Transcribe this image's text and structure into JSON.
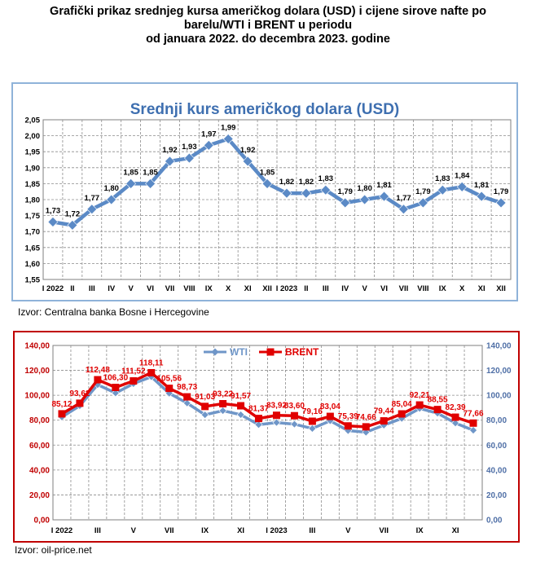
{
  "title": {
    "line1": "Grafički prikaz srednjeg kursa američkog dolara (USD) i cijene sirove nafte po",
    "line2": "barelu/WTI i BRENT u periodu",
    "line3": "od januara 2022. do decembra 2023. godine"
  },
  "chart_data": [
    {
      "type": "line",
      "title": "Srednji kurs američkog dolara (USD)",
      "categories": [
        "I 2022",
        "II",
        "III",
        "IV",
        "V",
        "VI",
        "VII",
        "VIII",
        "IX",
        "X",
        "XI",
        "XII",
        "I 2023",
        "II",
        "III",
        "IV",
        "V",
        "VI",
        "VII",
        "VIII",
        "IX",
        "X",
        "XI",
        "XII"
      ],
      "series": [
        {
          "name": "USD",
          "values": [
            1.73,
            1.72,
            1.77,
            1.8,
            1.85,
            1.85,
            1.92,
            1.93,
            1.97,
            1.99,
            1.92,
            1.85,
            1.82,
            1.82,
            1.83,
            1.79,
            1.8,
            1.81,
            1.77,
            1.79,
            1.83,
            1.84,
            1.81,
            1.79
          ],
          "labels": [
            "1,73",
            "1,72",
            "1,77",
            "1,80",
            "1,85",
            "1,85",
            "1,92",
            "1,93",
            "1,97",
            "1,99",
            "1,92",
            "1,85",
            "1,82",
            "1,82",
            "1,83",
            "1,79",
            "1,80",
            "1,81",
            "1,77",
            "1,79",
            "1,83",
            "1,84",
            "1,81",
            "1,79"
          ],
          "color": "#5b8ac6"
        }
      ],
      "ylim": [
        1.55,
        2.05
      ],
      "yticks": [
        "1,55",
        "1,60",
        "1,65",
        "1,70",
        "1,75",
        "1,80",
        "1,85",
        "1,90",
        "1,95",
        "2,00",
        "2,05"
      ],
      "grid": true,
      "source": "Izvor:  Centralna  banka Bosne i Hercegovine"
    },
    {
      "type": "line",
      "title": "",
      "categories": [
        "I 2022",
        "II",
        "III",
        "IV",
        "V",
        "VI",
        "VII",
        "VIII",
        "IX",
        "X",
        "XI",
        "XII",
        "I 2023",
        "II",
        "III",
        "IV",
        "V",
        "VI",
        "VII",
        "VIII",
        "IX",
        "X",
        "XI",
        "XII"
      ],
      "xtick_labels": [
        "I 2022",
        "",
        "III",
        "",
        "V",
        "",
        "VII",
        "",
        "IX",
        "",
        "XI",
        "",
        "I 2023",
        "",
        "III",
        "",
        "V",
        "",
        "VII",
        "",
        "IX",
        "",
        "XI",
        ""
      ],
      "series": [
        {
          "name": "WTI",
          "values": [
            82.5,
            91.6,
            108.5,
            101.8,
            109.3,
            114.8,
            101.6,
            93.7,
            84.3,
            87.6,
            84.4,
            76.4,
            78.1,
            76.8,
            73.3,
            79.5,
            71.6,
            70.3,
            76.0,
            81.4,
            89.4,
            85.6,
            77.7,
            71.9
          ],
          "color": "#6f96c8"
        },
        {
          "name": "BRENT",
          "values": [
            85.12,
            93.62,
            112.48,
            106.3,
            111.52,
            118.11,
            105.56,
            98.73,
            91.03,
            93.22,
            91.57,
            81.37,
            83.92,
            83.6,
            79.16,
            83.04,
            75.39,
            74.66,
            79.44,
            85.04,
            92.21,
            88.55,
            82.39,
            77.66
          ],
          "labels": [
            "85,12",
            "93,62",
            "112,48",
            "106,30",
            "111,52",
            "118,11",
            "105,56",
            "98,73",
            "91,03",
            "93,22",
            "91,57",
            "81,37",
            "83,92",
            "83,60",
            "79,16",
            "83,04",
            "75,39",
            "74,66",
            "79,44",
            "85,04",
            "92,21",
            "88,55",
            "82,39",
            "77,66"
          ],
          "color": "#e00000"
        }
      ],
      "ylim": [
        0,
        140
      ],
      "yticks_left": [
        "0,00",
        "20,00",
        "40,00",
        "60,00",
        "80,00",
        "100,00",
        "120,00",
        "140,00"
      ],
      "yticks_right": [
        "0,00",
        "20,00",
        "40,00",
        "60,00",
        "80,00",
        "100,00",
        "120,00",
        "140,00"
      ],
      "legend": "top-center",
      "grid": true,
      "source": "Izvor: oil-price.net"
    }
  ]
}
